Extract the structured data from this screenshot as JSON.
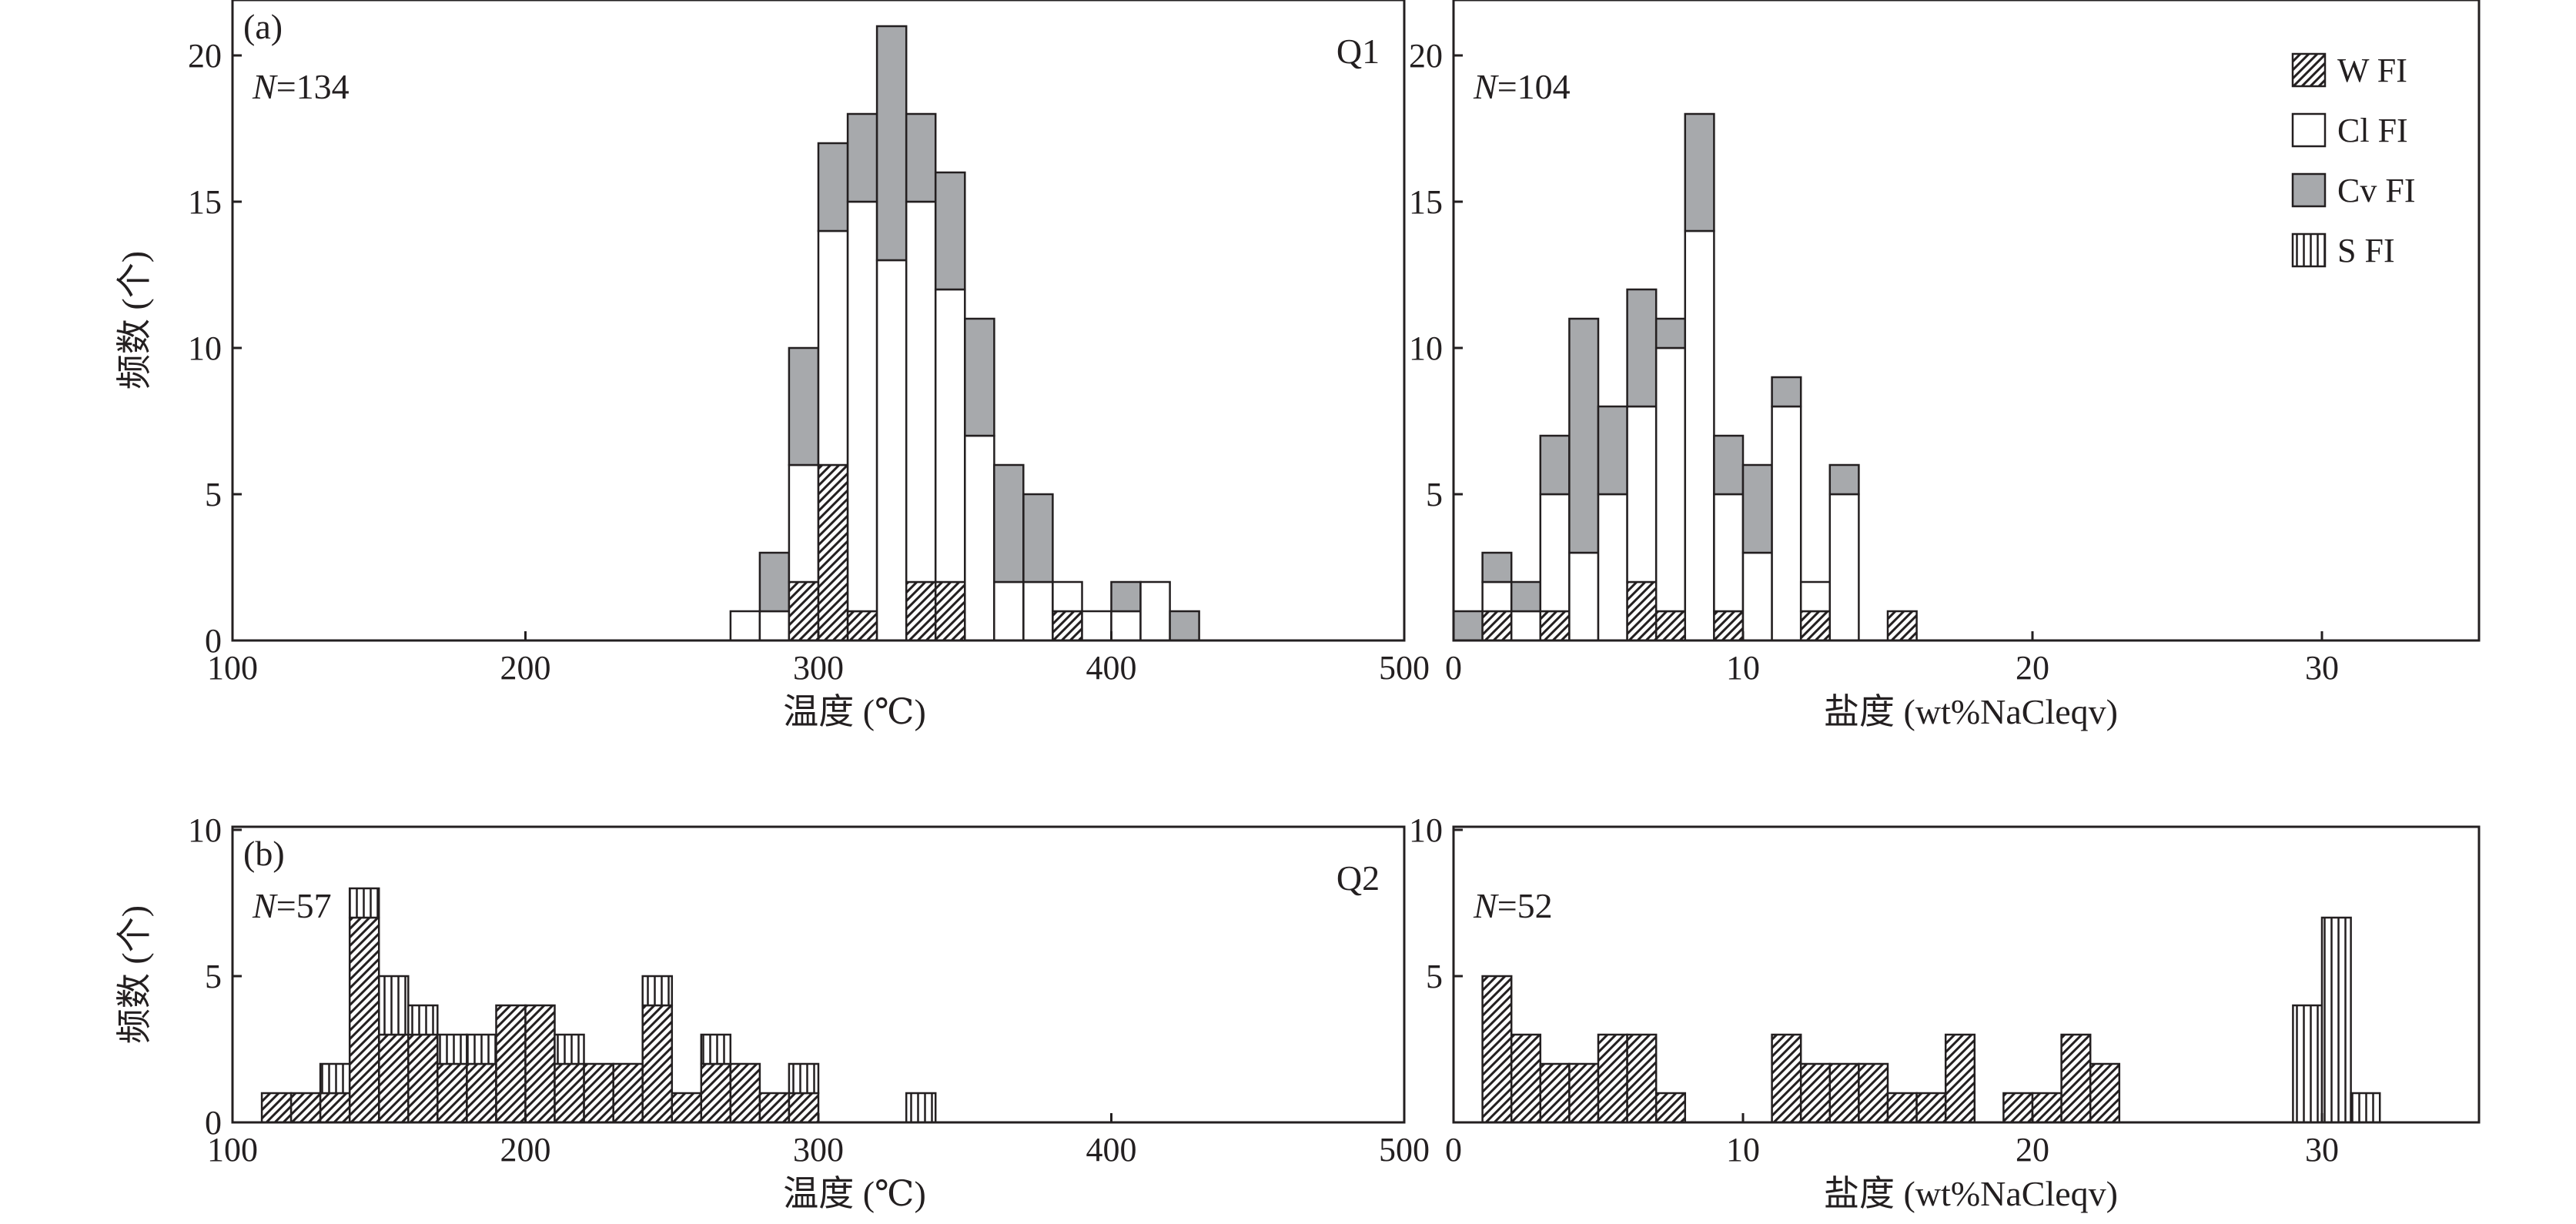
{
  "colors": {
    "ink": "#231f20",
    "cv": "#a7a9ac",
    "cl": "#ffffff"
  },
  "legend": [
    {
      "key": "W",
      "label": "W FI",
      "fill": "url(#p-w)"
    },
    {
      "key": "Cl",
      "label": "Cl FI",
      "fill": "#ffffff"
    },
    {
      "key": "Cv",
      "label": "Cv FI",
      "fill": "#a7a9ac"
    },
    {
      "key": "S",
      "label": "S FI",
      "fill": "url(#p-s)"
    }
  ],
  "chart_data": [
    {
      "type": "bar",
      "stacked": true,
      "panel_label": "(a)",
      "sample": "Q1",
      "n_label_prefix": "N",
      "n_label_suffix": "=134",
      "xlabel": "温度 (℃)",
      "ylabel": "频数 (个)",
      "xlim": [
        100,
        500
      ],
      "ylim": [
        0,
        22
      ],
      "xticks": [
        100,
        200,
        300,
        400,
        500
      ],
      "yticks": [
        0,
        5,
        10,
        15,
        20
      ],
      "bin_width": 10,
      "bins": [
        {
          "x": 270,
          "W": 0,
          "Cl": 1,
          "Cv": 0,
          "S": 0
        },
        {
          "x": 280,
          "W": 0,
          "Cl": 1,
          "Cv": 2,
          "S": 0
        },
        {
          "x": 290,
          "W": 2,
          "Cl": 4,
          "Cv": 4,
          "S": 0
        },
        {
          "x": 300,
          "W": 6,
          "Cl": 8,
          "Cv": 3,
          "S": 0
        },
        {
          "x": 310,
          "W": 1,
          "Cl": 14,
          "Cv": 3,
          "S": 0
        },
        {
          "x": 320,
          "W": 0,
          "Cl": 13,
          "Cv": 8,
          "S": 0
        },
        {
          "x": 330,
          "W": 2,
          "Cl": 13,
          "Cv": 3,
          "S": 0
        },
        {
          "x": 340,
          "W": 2,
          "Cl": 10,
          "Cv": 4,
          "S": 0
        },
        {
          "x": 350,
          "W": 0,
          "Cl": 7,
          "Cv": 4,
          "S": 0
        },
        {
          "x": 360,
          "W": 0,
          "Cl": 2,
          "Cv": 4,
          "S": 0
        },
        {
          "x": 370,
          "W": 0,
          "Cl": 2,
          "Cv": 3,
          "S": 0
        },
        {
          "x": 380,
          "W": 1,
          "Cl": 1,
          "Cv": 0,
          "S": 0
        },
        {
          "x": 390,
          "W": 0,
          "Cl": 1,
          "Cv": 0,
          "S": 0
        },
        {
          "x": 400,
          "W": 0,
          "Cl": 1,
          "Cv": 1,
          "S": 0
        },
        {
          "x": 410,
          "W": 0,
          "Cl": 2,
          "Cv": 0,
          "S": 0
        },
        {
          "x": 420,
          "W": 0,
          "Cl": 0,
          "Cv": 1,
          "S": 0
        }
      ]
    },
    {
      "type": "bar",
      "stacked": true,
      "panel_label": "",
      "sample": "",
      "n_label_prefix": "N",
      "n_label_suffix": "=104",
      "xlabel": "盐度 (wt%NaCleqv)",
      "ylabel": "",
      "xlim": [
        0,
        35
      ],
      "ylim": [
        0,
        22
      ],
      "xticks": [
        0,
        10,
        20,
        30
      ],
      "yticks": [
        5,
        10,
        15,
        20
      ],
      "bin_width": 1,
      "bins": [
        {
          "x": 0,
          "W": 0,
          "Cl": 0,
          "Cv": 1,
          "S": 0
        },
        {
          "x": 1,
          "W": 1,
          "Cl": 1,
          "Cv": 1,
          "S": 0
        },
        {
          "x": 2,
          "W": 0,
          "Cl": 1,
          "Cv": 1,
          "S": 0
        },
        {
          "x": 3,
          "W": 1,
          "Cl": 4,
          "Cv": 2,
          "S": 0
        },
        {
          "x": 4,
          "W": 0,
          "Cl": 3,
          "Cv": 8,
          "S": 0
        },
        {
          "x": 5,
          "W": 0,
          "Cl": 5,
          "Cv": 3,
          "S": 0
        },
        {
          "x": 6,
          "W": 2,
          "Cl": 6,
          "Cv": 4,
          "S": 0
        },
        {
          "x": 7,
          "W": 1,
          "Cl": 9,
          "Cv": 1,
          "S": 0
        },
        {
          "x": 8,
          "W": 0,
          "Cl": 14,
          "Cv": 4,
          "S": 0
        },
        {
          "x": 9,
          "W": 1,
          "Cl": 4,
          "Cv": 2,
          "S": 0
        },
        {
          "x": 10,
          "W": 0,
          "Cl": 3,
          "Cv": 3,
          "S": 0
        },
        {
          "x": 11,
          "W": 0,
          "Cl": 8,
          "Cv": 1,
          "S": 0
        },
        {
          "x": 12,
          "W": 1,
          "Cl": 1,
          "Cv": 0,
          "S": 0
        },
        {
          "x": 13,
          "W": 0,
          "Cl": 5,
          "Cv": 1,
          "S": 0
        },
        {
          "x": 15,
          "W": 1,
          "Cl": 0,
          "Cv": 0,
          "S": 0
        }
      ]
    },
    {
      "type": "bar",
      "stacked": true,
      "panel_label": "(b)",
      "sample": "Q2",
      "n_label_prefix": "N",
      "n_label_suffix": "=57",
      "xlabel": "温度 (℃)",
      "ylabel": "频数 (个)",
      "xlim": [
        100,
        500
      ],
      "ylim": [
        0,
        10
      ],
      "xticks": [
        100,
        200,
        300,
        400,
        500
      ],
      "yticks": [
        0,
        5,
        10
      ],
      "bin_width": 10,
      "bins": [
        {
          "x": 110,
          "W": 1,
          "Cl": 0,
          "Cv": 0,
          "S": 0
        },
        {
          "x": 120,
          "W": 1,
          "Cl": 0,
          "Cv": 0,
          "S": 0
        },
        {
          "x": 130,
          "W": 1,
          "Cl": 0,
          "Cv": 0,
          "S": 1
        },
        {
          "x": 140,
          "W": 7,
          "Cl": 0,
          "Cv": 0,
          "S": 1
        },
        {
          "x": 150,
          "W": 3,
          "Cl": 0,
          "Cv": 0,
          "S": 2
        },
        {
          "x": 160,
          "W": 3,
          "Cl": 0,
          "Cv": 0,
          "S": 1
        },
        {
          "x": 170,
          "W": 2,
          "Cl": 0,
          "Cv": 0,
          "S": 1
        },
        {
          "x": 180,
          "W": 2,
          "Cl": 0,
          "Cv": 0,
          "S": 1
        },
        {
          "x": 190,
          "W": 4,
          "Cl": 0,
          "Cv": 0,
          "S": 0
        },
        {
          "x": 200,
          "W": 4,
          "Cl": 0,
          "Cv": 0,
          "S": 0
        },
        {
          "x": 210,
          "W": 2,
          "Cl": 0,
          "Cv": 0,
          "S": 1
        },
        {
          "x": 220,
          "W": 2,
          "Cl": 0,
          "Cv": 0,
          "S": 0
        },
        {
          "x": 230,
          "W": 2,
          "Cl": 0,
          "Cv": 0,
          "S": 0
        },
        {
          "x": 240,
          "W": 4,
          "Cl": 0,
          "Cv": 0,
          "S": 1
        },
        {
          "x": 250,
          "W": 1,
          "Cl": 0,
          "Cv": 0,
          "S": 0
        },
        {
          "x": 260,
          "W": 2,
          "Cl": 0,
          "Cv": 0,
          "S": 1
        },
        {
          "x": 270,
          "W": 2,
          "Cl": 0,
          "Cv": 0,
          "S": 0
        },
        {
          "x": 280,
          "W": 1,
          "Cl": 0,
          "Cv": 0,
          "S": 0
        },
        {
          "x": 290,
          "W": 1,
          "Cl": 0,
          "Cv": 0,
          "S": 1
        },
        {
          "x": 330,
          "W": 0,
          "Cl": 0,
          "Cv": 0,
          "S": 1
        }
      ]
    },
    {
      "type": "bar",
      "stacked": true,
      "panel_label": "",
      "sample": "",
      "n_label_prefix": "N",
      "n_label_suffix": "=52",
      "xlabel": "盐度 (wt%NaCleqv)",
      "ylabel": "",
      "xlim": [
        0,
        35
      ],
      "ylim": [
        0,
        10
      ],
      "xticks": [
        0,
        10,
        20,
        30
      ],
      "yticks": [
        5,
        10
      ],
      "bin_width": 1,
      "bins": [
        {
          "x": 1,
          "W": 5,
          "Cl": 0,
          "Cv": 0,
          "S": 0
        },
        {
          "x": 2,
          "W": 3,
          "Cl": 0,
          "Cv": 0,
          "S": 0
        },
        {
          "x": 3,
          "W": 2,
          "Cl": 0,
          "Cv": 0,
          "S": 0
        },
        {
          "x": 4,
          "W": 2,
          "Cl": 0,
          "Cv": 0,
          "S": 0
        },
        {
          "x": 5,
          "W": 3,
          "Cl": 0,
          "Cv": 0,
          "S": 0
        },
        {
          "x": 6,
          "W": 3,
          "Cl": 0,
          "Cv": 0,
          "S": 0
        },
        {
          "x": 7,
          "W": 1,
          "Cl": 0,
          "Cv": 0,
          "S": 0
        },
        {
          "x": 11,
          "W": 3,
          "Cl": 0,
          "Cv": 0,
          "S": 0
        },
        {
          "x": 12,
          "W": 2,
          "Cl": 0,
          "Cv": 0,
          "S": 0
        },
        {
          "x": 13,
          "W": 2,
          "Cl": 0,
          "Cv": 0,
          "S": 0
        },
        {
          "x": 14,
          "W": 2,
          "Cl": 0,
          "Cv": 0,
          "S": 0
        },
        {
          "x": 15,
          "W": 1,
          "Cl": 0,
          "Cv": 0,
          "S": 0
        },
        {
          "x": 16,
          "W": 1,
          "Cl": 0,
          "Cv": 0,
          "S": 0
        },
        {
          "x": 17,
          "W": 3,
          "Cl": 0,
          "Cv": 0,
          "S": 0
        },
        {
          "x": 19,
          "W": 1,
          "Cl": 0,
          "Cv": 0,
          "S": 0
        },
        {
          "x": 20,
          "W": 1,
          "Cl": 0,
          "Cv": 0,
          "S": 0
        },
        {
          "x": 21,
          "W": 3,
          "Cl": 0,
          "Cv": 0,
          "S": 0
        },
        {
          "x": 22,
          "W": 2,
          "Cl": 0,
          "Cv": 0,
          "S": 0
        },
        {
          "x": 29,
          "W": 0,
          "Cl": 0,
          "Cv": 0,
          "S": 4
        },
        {
          "x": 30,
          "W": 0,
          "Cl": 0,
          "Cv": 0,
          "S": 7
        },
        {
          "x": 31,
          "W": 0,
          "Cl": 0,
          "Cv": 0,
          "S": 1
        }
      ]
    }
  ]
}
